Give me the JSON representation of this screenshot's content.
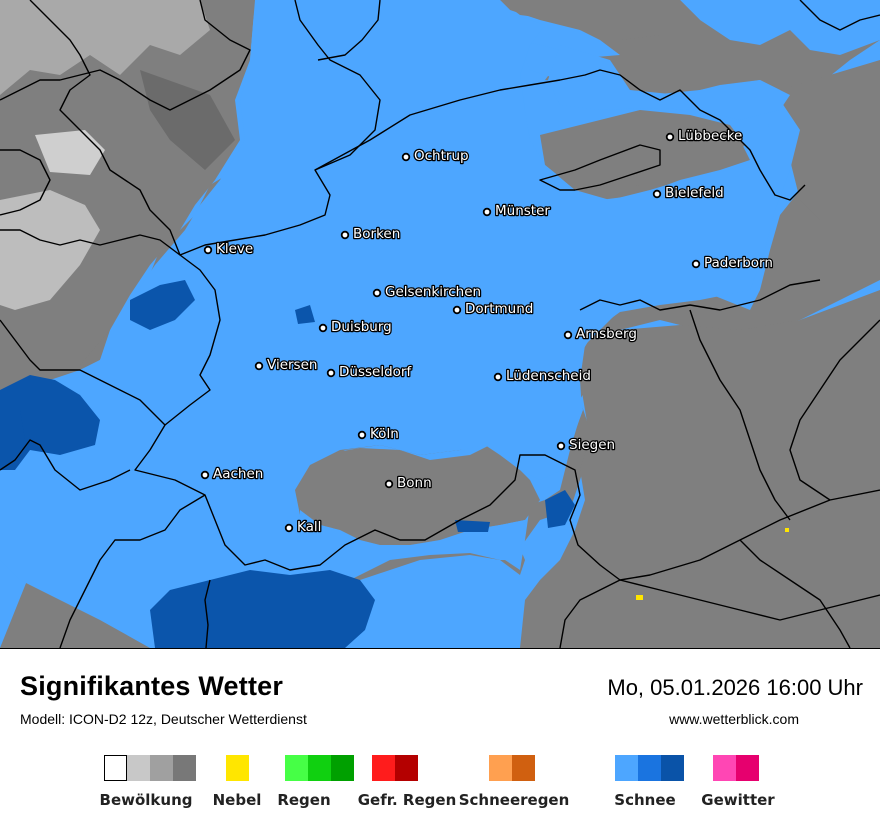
{
  "footer": {
    "title": "Signifikantes Wetter",
    "subtitle": "Modell: ICON-D2 12z, Deutscher Wetterdienst",
    "datetime": "Mo, 05.01.2026 16:00 Uhr",
    "website": "www.wetterblick.com"
  },
  "colors": {
    "snow_light": "#4da6ff",
    "snow_dark": "#0a53a8",
    "cloud_gray": "#808080",
    "cloud_dark": "#6e6e6e",
    "cloud_light": "#b4b4b4",
    "border": "#000000"
  },
  "cities": [
    {
      "name": "Ochtrup"
    },
    {
      "name": "Lübbecke"
    },
    {
      "name": "Bielefeld"
    },
    {
      "name": "Münster"
    },
    {
      "name": "Borken"
    },
    {
      "name": "Kleve"
    },
    {
      "name": "Paderborn"
    },
    {
      "name": "Gelsenkirchen"
    },
    {
      "name": "Dortmund"
    },
    {
      "name": "Duisburg"
    },
    {
      "name": "Arnsberg"
    },
    {
      "name": "Viersen"
    },
    {
      "name": "Düsseldorf"
    },
    {
      "name": "Lüdenscheid"
    },
    {
      "name": "Köln"
    },
    {
      "name": "Siegen"
    },
    {
      "name": "Aachen"
    },
    {
      "name": "Bonn"
    },
    {
      "name": "Kall"
    }
  ],
  "legend": [
    {
      "label": "Bewölkung",
      "colors": [
        "#ffffff",
        "#c8c8c8",
        "#a0a0a0",
        "#787878"
      ]
    },
    {
      "label": "Nebel",
      "colors": [
        "#ffe600"
      ]
    },
    {
      "label": "Regen",
      "colors": [
        "#46ff46",
        "#10d010",
        "#00a000"
      ]
    },
    {
      "label": "Gefr. Regen",
      "colors": [
        "#ff1c1c",
        "#b40000"
      ]
    },
    {
      "label": "Schneeregen",
      "colors": [
        "#ffa050",
        "#d06010"
      ]
    },
    {
      "label": "Schnee",
      "colors": [
        "#4da6ff",
        "#1a74e0",
        "#0a53a8"
      ]
    },
    {
      "label": "Gewitter",
      "colors": [
        "#ff46b4",
        "#e6006e"
      ]
    }
  ]
}
